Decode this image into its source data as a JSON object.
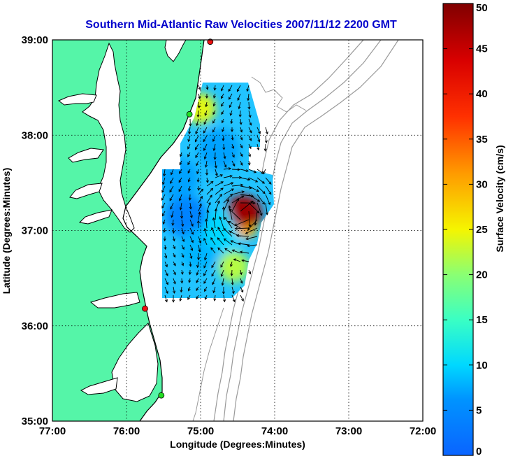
{
  "title": "Southern Mid-Atlantic Raw Velocities 2007/11/12 2200 GMT",
  "xlabel": "Longitude (Degrees:Minutes)",
  "ylabel": "Latitude (Degrees:Minutes)",
  "colorbar": {
    "label": "Surface Velocity (cm/s)",
    "min": 0,
    "max": 50,
    "ticks": [
      "0",
      "5",
      "10",
      "15",
      "20",
      "25",
      "30",
      "35",
      "40",
      "45",
      "50"
    ]
  },
  "map": {
    "lon_ticks": [
      "77:00",
      "76:00",
      "75:00",
      "74:00",
      "73:00",
      "72:00"
    ],
    "lat_ticks": [
      "39:00",
      "38:00",
      "37:00",
      "36:00",
      "35:00"
    ],
    "lon_range": [
      -77,
      -72
    ],
    "lat_range": [
      35,
      39
    ],
    "grid": "dotted",
    "colors": {
      "land": "#55f5a8",
      "coastline": "#000000",
      "bathymetry": "#9a9a9a",
      "title": "#0000cc",
      "station_green": "#22dd22",
      "station_red": "#ee1111"
    },
    "stations": [
      {
        "lon": -74.87,
        "lat": 38.98,
        "color": "red"
      },
      {
        "lon": -75.15,
        "lat": 38.22,
        "color": "green"
      },
      {
        "lon": -75.75,
        "lat": 36.18,
        "color": "red"
      },
      {
        "lon": -75.53,
        "lat": 35.27,
        "color": "green"
      }
    ]
  },
  "chart_data": {
    "type": "heatmap",
    "title": "Southern Mid-Atlantic Raw Velocities 2007/11/12 2200 GMT",
    "xlabel": "Longitude (Degrees:Minutes)",
    "ylabel": "Latitude (Degrees:Minutes)",
    "xlim": [
      -77,
      -72
    ],
    "ylim": [
      35,
      39
    ],
    "value_label": "Surface Velocity (cm/s)",
    "value_range": [
      0,
      50
    ],
    "field_extent": {
      "lon": [
        -75.5,
        -74.2
      ],
      "lat": [
        36.2,
        38.5
      ]
    },
    "features": [
      {
        "lon": -74.42,
        "lat": 37.18,
        "speed": 48
      },
      {
        "lon": -75.0,
        "lat": 38.28,
        "speed": 24
      },
      {
        "lon": -74.55,
        "lat": 36.62,
        "speed": 22
      },
      {
        "lon": -75.2,
        "lat": 37.15,
        "speed": 4
      },
      {
        "lon": -75.3,
        "lat": 37.55,
        "speed": 7
      },
      {
        "lon": -74.75,
        "lat": 37.85,
        "speed": 7
      },
      {
        "lon": -75.0,
        "lat": 36.8,
        "speed": 8
      },
      {
        "lon": -74.68,
        "lat": 37.0,
        "speed": 10
      }
    ]
  }
}
